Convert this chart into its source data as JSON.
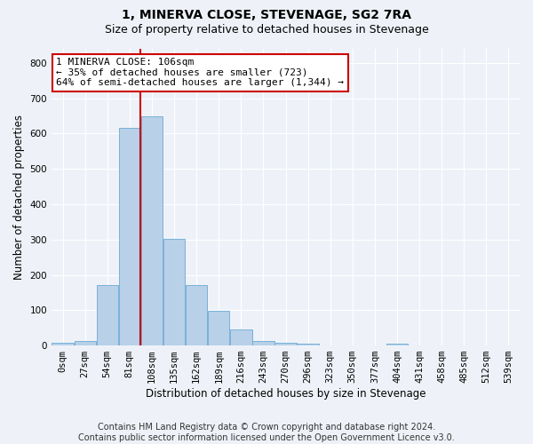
{
  "title": "1, MINERVA CLOSE, STEVENAGE, SG2 7RA",
  "subtitle": "Size of property relative to detached houses in Stevenage",
  "xlabel": "Distribution of detached houses by size in Stevenage",
  "ylabel": "Number of detached properties",
  "bin_labels": [
    "0sqm",
    "27sqm",
    "54sqm",
    "81sqm",
    "108sqm",
    "135sqm",
    "162sqm",
    "189sqm",
    "216sqm",
    "243sqm",
    "270sqm",
    "296sqm",
    "323sqm",
    "350sqm",
    "377sqm",
    "404sqm",
    "431sqm",
    "458sqm",
    "485sqm",
    "512sqm",
    "539sqm"
  ],
  "bar_heights": [
    7,
    12,
    170,
    617,
    650,
    303,
    172,
    99,
    45,
    14,
    7,
    5,
    0,
    0,
    0,
    5,
    0,
    0,
    0,
    0,
    0
  ],
  "bar_color": "#b8d0e8",
  "bar_edge_color": "#6aaad4",
  "vline_color": "#cc0000",
  "annotation_line1": "1 MINERVA CLOSE: 106sqm",
  "annotation_line2": "← 35% of detached houses are smaller (723)",
  "annotation_line3": "64% of semi-detached houses are larger (1,344) →",
  "annotation_box_color": "#ffffff",
  "annotation_box_edge": "#cc0000",
  "ylim": [
    0,
    840
  ],
  "yticks": [
    0,
    100,
    200,
    300,
    400,
    500,
    600,
    700,
    800
  ],
  "footer": "Contains HM Land Registry data © Crown copyright and database right 2024.\nContains public sector information licensed under the Open Government Licence v3.0.",
  "bg_color": "#eef2f8",
  "plot_bg_color": "#eef2f8",
  "grid_color": "#ffffff",
  "title_fontsize": 10,
  "subtitle_fontsize": 9,
  "axis_label_fontsize": 8.5,
  "tick_fontsize": 7.5,
  "footer_fontsize": 7,
  "annot_fontsize": 8
}
